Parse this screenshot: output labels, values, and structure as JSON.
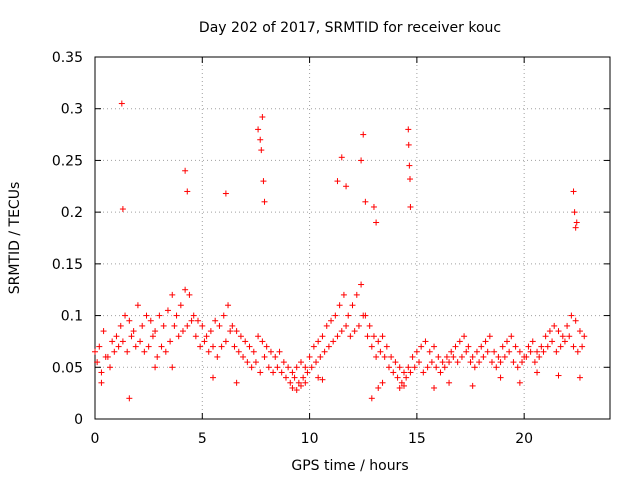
{
  "chart_data": {
    "type": "scatter",
    "title": "Day 202 of 2017, SRMTID for receiver kouc",
    "xlabel": "GPS time / hours",
    "ylabel": "SRMTID / TECUs",
    "xlim": [
      0,
      24
    ],
    "ylim": [
      0,
      0.35
    ],
    "x_ticks": [
      0,
      5,
      10,
      15,
      20
    ],
    "x_tick_labels": [
      "0",
      "5",
      "10",
      "15",
      "20"
    ],
    "y_ticks": [
      0,
      0.05,
      0.1,
      0.15,
      0.2,
      0.25,
      0.3,
      0.35
    ],
    "y_tick_labels": [
      "0",
      "0.05",
      "0.1",
      "0.15",
      "0.2",
      "0.25",
      "0.3",
      "0.35"
    ],
    "grid": true,
    "marker": "plus",
    "color": "#ff0000",
    "series": [
      {
        "name": "SRMTID",
        "x": [
          0.0,
          0.2,
          0.4,
          0.6,
          0.8,
          1.0,
          1.2,
          1.4,
          1.6,
          1.8,
          2.0,
          2.2,
          2.4,
          2.6,
          2.8,
          3.0,
          3.2,
          3.4,
          3.6,
          3.8,
          4.0,
          4.2,
          4.4,
          4.6,
          4.8,
          5.0,
          5.2,
          5.4,
          5.6,
          5.8,
          6.0,
          6.2,
          6.4,
          6.6,
          6.8,
          7.0,
          7.2,
          7.4,
          7.6,
          7.8,
          8.0,
          8.2,
          8.4,
          8.6,
          8.8,
          9.0,
          9.2,
          9.4,
          9.6,
          9.8,
          10.0,
          10.2,
          10.4,
          10.6,
          10.8,
          11.0,
          11.2,
          11.4,
          11.6,
          11.8,
          12.0,
          12.2,
          12.4,
          12.6,
          12.8,
          13.0,
          13.2,
          13.4,
          13.6,
          13.8,
          14.0,
          14.2,
          14.4,
          14.6,
          14.8,
          15.0,
          15.2,
          15.4,
          15.6,
          15.8,
          16.0,
          16.2,
          16.4,
          16.6,
          16.8,
          17.0,
          17.2,
          17.4,
          17.6,
          17.8,
          18.0,
          18.2,
          18.4,
          18.6,
          18.8,
          19.0,
          19.2,
          19.4,
          19.6,
          19.8,
          20.0,
          20.2,
          20.4,
          20.6,
          20.8,
          21.0,
          21.2,
          21.4,
          21.6,
          21.8,
          22.0,
          22.2,
          22.4,
          22.6,
          22.8,
          0.1,
          0.3,
          0.5,
          0.7,
          0.9,
          1.1,
          1.3,
          1.5,
          1.7,
          1.9,
          2.1,
          2.3,
          2.5,
          2.7,
          2.9,
          3.1,
          3.3,
          3.5,
          3.7,
          3.9,
          4.1,
          4.3,
          4.5,
          4.7,
          4.9,
          5.1,
          5.3,
          5.5,
          5.7,
          5.9,
          6.1,
          6.3,
          6.5,
          6.7,
          6.9,
          7.1,
          7.3,
          7.5,
          7.7,
          7.9,
          8.1,
          8.3,
          8.5,
          8.7,
          8.9,
          9.1,
          9.3,
          9.5,
          9.7,
          9.9,
          10.1,
          10.3,
          10.5,
          10.7,
          10.9,
          11.1,
          11.3,
          11.5,
          11.7,
          11.9,
          12.1,
          12.3,
          12.5,
          12.7,
          12.9,
          13.1,
          13.3,
          13.5,
          13.7,
          13.9,
          14.1,
          14.3,
          14.5,
          14.7,
          14.9,
          15.1,
          15.3,
          15.5,
          15.7,
          15.9,
          16.1,
          16.3,
          16.5,
          16.7,
          16.9,
          17.1,
          17.3,
          17.5,
          17.7,
          17.9,
          18.1,
          18.3,
          18.5,
          18.7,
          18.9,
          19.1,
          19.3,
          19.5,
          19.7,
          19.9,
          20.1,
          20.3,
          20.5,
          20.7,
          20.9,
          21.1,
          21.3,
          21.5,
          21.7,
          21.9,
          22.1,
          22.3,
          22.5,
          22.7,
          1.25,
          1.3,
          4.2,
          4.3,
          6.1,
          7.6,
          7.7,
          7.75,
          7.8,
          7.85,
          7.9,
          11.3,
          11.5,
          11.7,
          12.4,
          12.5,
          12.6,
          13.0,
          13.1,
          14.6,
          14.62,
          14.65,
          14.68,
          14.7,
          22.3,
          22.35,
          22.4,
          22.45,
          0.3,
          1.6,
          2.8,
          3.6,
          5.5,
          6.6,
          9.2,
          9.4,
          9.6,
          9.8,
          10.4,
          10.6,
          12.9,
          13.2,
          13.4,
          14.2,
          14.4,
          15.8,
          16.5,
          17.6,
          18.9,
          19.8,
          20.6,
          21.6,
          22.6
        ],
        "y": [
          0.065,
          0.07,
          0.085,
          0.06,
          0.075,
          0.08,
          0.09,
          0.1,
          0.095,
          0.085,
          0.11,
          0.09,
          0.1,
          0.095,
          0.085,
          0.1,
          0.09,
          0.105,
          0.12,
          0.1,
          0.11,
          0.125,
          0.12,
          0.1,
          0.095,
          0.09,
          0.08,
          0.085,
          0.095,
          0.09,
          0.1,
          0.11,
          0.09,
          0.085,
          0.08,
          0.075,
          0.07,
          0.065,
          0.08,
          0.075,
          0.07,
          0.065,
          0.06,
          0.065,
          0.055,
          0.05,
          0.045,
          0.05,
          0.055,
          0.05,
          0.06,
          0.07,
          0.075,
          0.08,
          0.09,
          0.095,
          0.1,
          0.11,
          0.12,
          0.1,
          0.11,
          0.12,
          0.13,
          0.1,
          0.09,
          0.08,
          0.075,
          0.08,
          0.07,
          0.06,
          0.055,
          0.05,
          0.045,
          0.05,
          0.06,
          0.065,
          0.07,
          0.075,
          0.065,
          0.07,
          0.06,
          0.055,
          0.06,
          0.065,
          0.07,
          0.075,
          0.08,
          0.07,
          0.06,
          0.065,
          0.07,
          0.075,
          0.08,
          0.065,
          0.06,
          0.07,
          0.075,
          0.08,
          0.07,
          0.065,
          0.06,
          0.07,
          0.075,
          0.065,
          0.07,
          0.08,
          0.085,
          0.09,
          0.085,
          0.08,
          0.09,
          0.1,
          0.095,
          0.085,
          0.08,
          0.055,
          0.045,
          0.06,
          0.05,
          0.065,
          0.07,
          0.075,
          0.065,
          0.08,
          0.07,
          0.075,
          0.065,
          0.07,
          0.08,
          0.06,
          0.07,
          0.065,
          0.075,
          0.09,
          0.08,
          0.085,
          0.09,
          0.095,
          0.08,
          0.07,
          0.075,
          0.065,
          0.07,
          0.06,
          0.07,
          0.075,
          0.085,
          0.07,
          0.065,
          0.06,
          0.055,
          0.05,
          0.055,
          0.045,
          0.06,
          0.05,
          0.045,
          0.05,
          0.045,
          0.04,
          0.035,
          0.04,
          0.035,
          0.04,
          0.045,
          0.05,
          0.055,
          0.06,
          0.065,
          0.07,
          0.075,
          0.08,
          0.085,
          0.09,
          0.08,
          0.085,
          0.09,
          0.1,
          0.08,
          0.07,
          0.06,
          0.065,
          0.06,
          0.05,
          0.045,
          0.04,
          0.035,
          0.04,
          0.045,
          0.05,
          0.055,
          0.045,
          0.05,
          0.055,
          0.05,
          0.045,
          0.05,
          0.055,
          0.06,
          0.055,
          0.06,
          0.065,
          0.055,
          0.05,
          0.055,
          0.06,
          0.065,
          0.055,
          0.05,
          0.055,
          0.06,
          0.065,
          0.055,
          0.05,
          0.055,
          0.06,
          0.065,
          0.055,
          0.06,
          0.065,
          0.07,
          0.075,
          0.065,
          0.07,
          0.075,
          0.08,
          0.07,
          0.065,
          0.07,
          0.305,
          0.203,
          0.24,
          0.22,
          0.218,
          0.28,
          0.27,
          0.26,
          0.292,
          0.23,
          0.21,
          0.23,
          0.253,
          0.225,
          0.25,
          0.275,
          0.21,
          0.205,
          0.19,
          0.28,
          0.265,
          0.245,
          0.232,
          0.205,
          0.22,
          0.2,
          0.185,
          0.19,
          0.035,
          0.02,
          0.05,
          0.05,
          0.04,
          0.035,
          0.03,
          0.028,
          0.032,
          0.035,
          0.04,
          0.038,
          0.02,
          0.03,
          0.035,
          0.03,
          0.032,
          0.03,
          0.035,
          0.032,
          0.04,
          0.035,
          0.045,
          0.042,
          0.04
        ]
      }
    ]
  }
}
